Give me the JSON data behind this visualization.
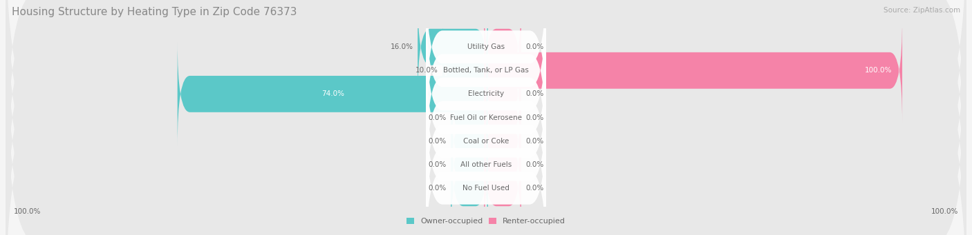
{
  "title": "Housing Structure by Heating Type in Zip Code 76373",
  "source": "Source: ZipAtlas.com",
  "categories": [
    "Utility Gas",
    "Bottled, Tank, or LP Gas",
    "Electricity",
    "Fuel Oil or Kerosene",
    "Coal or Coke",
    "All other Fuels",
    "No Fuel Used"
  ],
  "owner_values": [
    16.0,
    10.0,
    74.0,
    0.0,
    0.0,
    0.0,
    0.0
  ],
  "renter_values": [
    0.0,
    100.0,
    0.0,
    0.0,
    0.0,
    0.0,
    0.0
  ],
  "owner_color": "#5bc8c8",
  "renter_color": "#f583a8",
  "row_bg_color": "#e8e8e8",
  "fig_bg_color": "#f5f5f5",
  "title_color": "#888888",
  "source_color": "#aaaaaa",
  "label_color": "#666666",
  "value_color": "#666666",
  "white_label_color": "#ffffff",
  "title_fontsize": 11,
  "source_fontsize": 7.5,
  "bar_label_fontsize": 7.5,
  "cat_label_fontsize": 7.5,
  "axis_fontsize": 7.5,
  "max_value": 100.0,
  "default_owner_bar_pct": 30,
  "default_renter_bar_pct": 15,
  "left_axis_label": "100.0%",
  "right_axis_label": "100.0%"
}
